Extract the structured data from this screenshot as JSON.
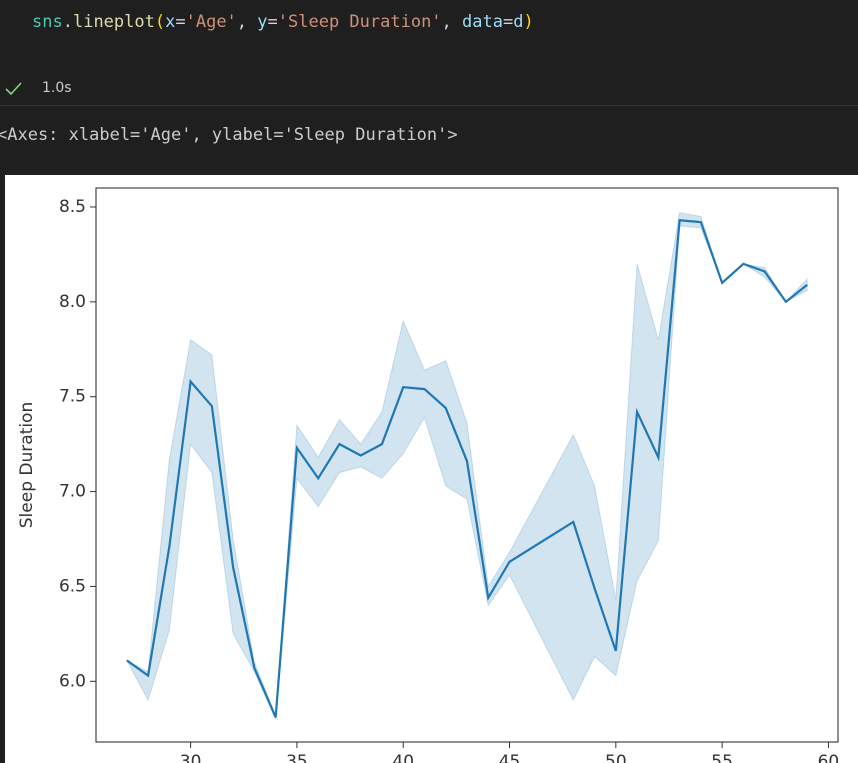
{
  "code_tokens": [
    {
      "text": "sns",
      "color": "#4ec9b0"
    },
    {
      "text": ".",
      "color": "#d4d4d4"
    },
    {
      "text": "lineplot",
      "color": "#dcdcaa"
    },
    {
      "text": "(",
      "color": "#ffd700"
    },
    {
      "text": "x",
      "color": "#9cdcfe"
    },
    {
      "text": "=",
      "color": "#d4d4d4"
    },
    {
      "text": "'Age'",
      "color": "#ce9178"
    },
    {
      "text": ", ",
      "color": "#d4d4d4"
    },
    {
      "text": "y",
      "color": "#9cdcfe"
    },
    {
      "text": "=",
      "color": "#d4d4d4"
    },
    {
      "text": "'Sleep Duration'",
      "color": "#ce9178"
    },
    {
      "text": ", ",
      "color": "#d4d4d4"
    },
    {
      "text": "data",
      "color": "#9cdcfe"
    },
    {
      "text": "=",
      "color": "#d4d4d4"
    },
    {
      "text": "d",
      "color": "#9cdcfe"
    },
    {
      "text": ")",
      "color": "#ffd700"
    }
  ],
  "status": {
    "duration": "1.0s"
  },
  "output_text": "<Axes: xlabel='Age', ylabel='Sleep Duration'>",
  "chart_data": {
    "type": "line",
    "ylabel": "Sleep Duration",
    "color": "#1f77b4",
    "band_color": "#1f77b4",
    "x": [
      27,
      28,
      29,
      30,
      31,
      32,
      33,
      34,
      35,
      36,
      37,
      38,
      39,
      40,
      41,
      42,
      43,
      44,
      45,
      48,
      49,
      50,
      51,
      52,
      53,
      54,
      55,
      56,
      57,
      58,
      59
    ],
    "values": [
      6.11,
      6.03,
      6.71,
      7.58,
      7.45,
      6.6,
      6.07,
      5.81,
      7.23,
      7.07,
      7.25,
      7.19,
      7.25,
      7.55,
      7.54,
      7.44,
      7.16,
      6.44,
      6.63,
      6.84,
      6.49,
      6.16,
      7.42,
      7.18,
      8.43,
      8.42,
      8.1,
      8.2,
      8.16,
      8.0,
      8.09
    ],
    "ci_lower": [
      6.11,
      5.9,
      6.27,
      7.25,
      7.1,
      6.25,
      6.05,
      5.8,
      7.07,
      6.92,
      7.1,
      7.13,
      7.07,
      7.2,
      7.39,
      7.03,
      6.96,
      6.4,
      6.56,
      5.9,
      6.13,
      6.03,
      6.53,
      6.74,
      8.4,
      8.39,
      8.1,
      8.2,
      8.13,
      8.0,
      8.06
    ],
    "ci_upper": [
      6.11,
      6.05,
      7.17,
      7.8,
      7.72,
      6.75,
      6.1,
      5.82,
      7.35,
      7.18,
      7.38,
      7.25,
      7.42,
      7.9,
      7.64,
      7.69,
      7.36,
      6.5,
      6.68,
      7.3,
      7.03,
      6.43,
      8.2,
      7.8,
      8.47,
      8.45,
      8.1,
      8.2,
      8.18,
      8.0,
      8.12
    ],
    "xlim": [
      25.55,
      60.45
    ],
    "ylim": [
      5.68,
      8.6
    ],
    "xticks": [
      30,
      35,
      40,
      45,
      50,
      55,
      60
    ],
    "yticks": [
      {
        "value": 6,
        "label": "6.0"
      },
      6.5,
      {
        "value": 7,
        "label": "7.0"
      },
      7.5,
      {
        "value": 8,
        "label": "8.0"
      },
      8.5
    ]
  }
}
